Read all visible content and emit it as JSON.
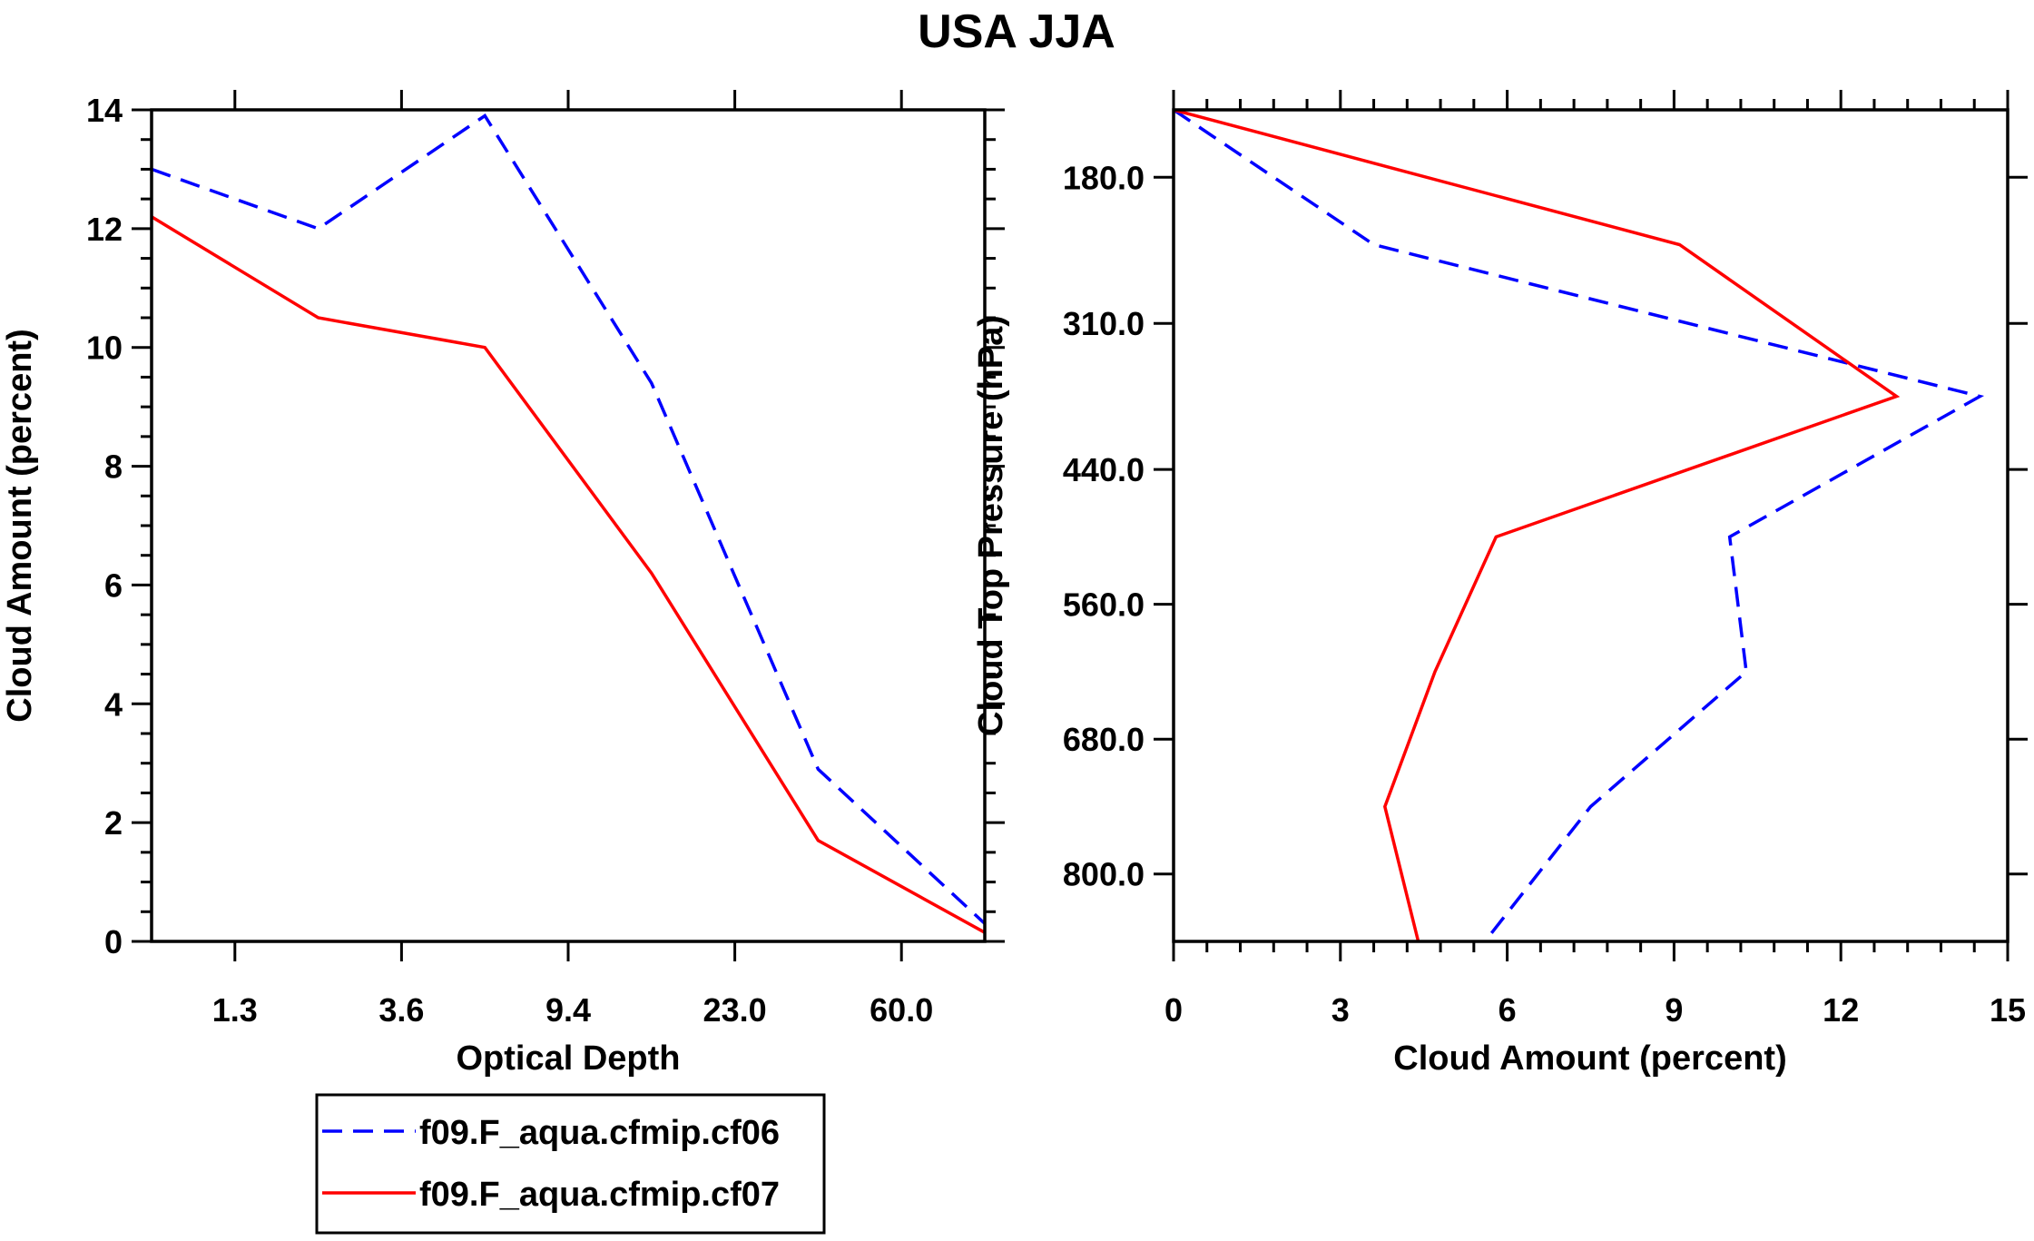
{
  "title": "USA JJA",
  "colors": {
    "cf06": "#0000ff",
    "cf07": "#ff0000",
    "axis": "#000000"
  },
  "legend": {
    "entries": [
      {
        "label": "f09.F_aqua.cfmip.cf06",
        "style": "dashed",
        "color": "#0000ff"
      },
      {
        "label": "f09.F_aqua.cfmip.cf07",
        "style": "solid",
        "color": "#ff0000"
      }
    ]
  },
  "chart_data": [
    {
      "type": "line",
      "title": "",
      "xlabel": "Optical Depth",
      "ylabel": "Cloud Amount (percent)",
      "x_index_range": [
        0,
        10
      ],
      "x_major_tick_positions": [
        1,
        3,
        5,
        7,
        9
      ],
      "x_tick_labels": [
        "1.3",
        "3.6",
        "9.4",
        "23.0",
        "60.0"
      ],
      "ylim": [
        0,
        14
      ],
      "y_major_ticks": [
        0,
        2,
        4,
        6,
        8,
        10,
        12,
        14
      ],
      "y_tick_labels": [
        "0",
        "2",
        "4",
        "6",
        "8",
        "10",
        "12",
        "14"
      ],
      "x": [
        0,
        2,
        4,
        6,
        8,
        10
      ],
      "series": [
        {
          "name": "f09.F_aqua.cfmip.cf06",
          "values": [
            13.0,
            12.0,
            13.9,
            9.4,
            2.9,
            0.3
          ]
        },
        {
          "name": "f09.F_aqua.cfmip.cf07",
          "values": [
            12.2,
            10.5,
            10.0,
            6.2,
            1.7,
            0.15
          ]
        }
      ]
    },
    {
      "type": "line",
      "title": "",
      "xlabel": "Cloud Amount (percent)",
      "ylabel": "Cloud Top Pressure (hPa)",
      "xlim": [
        0,
        15
      ],
      "x_major_ticks": [
        0,
        3,
        6,
        9,
        12,
        15
      ],
      "x_tick_labels": [
        "0",
        "3",
        "6",
        "9",
        "12",
        "15"
      ],
      "ylim": [
        120,
        860
      ],
      "y_inverted": true,
      "y_major_ticks": [
        180,
        310,
        440,
        560,
        680,
        800
      ],
      "y_tick_labels": [
        "180.0",
        "310.0",
        "440.0",
        "560.0",
        "680.0",
        "800.0"
      ],
      "pressure": [
        120,
        240,
        375,
        500,
        620,
        740,
        860
      ],
      "series": [
        {
          "name": "f09.F_aqua.cfmip.cf06",
          "values": [
            0.0,
            3.6,
            14.5,
            10.0,
            10.3,
            7.5,
            5.6
          ]
        },
        {
          "name": "f09.F_aqua.cfmip.cf07",
          "values": [
            0.0,
            9.1,
            13.0,
            5.8,
            4.7,
            3.8,
            4.4
          ]
        }
      ]
    }
  ]
}
